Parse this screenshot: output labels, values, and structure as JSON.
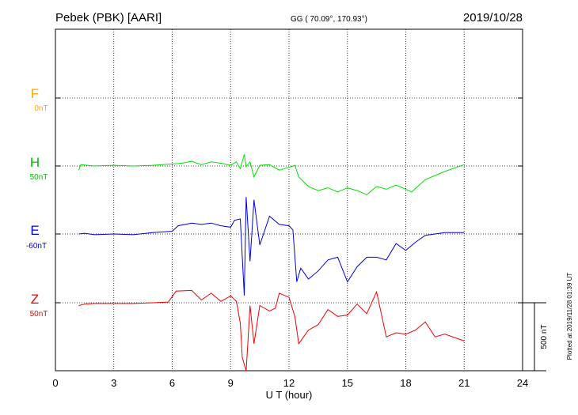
{
  "header": {
    "station": "Pebek (PBK)  [AARI]",
    "coords": "GG ( 70.09°, 170.93°)",
    "date": "2019/10/28"
  },
  "footer_note": "Plotted at 2019/11/28 01:39 UT",
  "colors": {
    "F": "#ffa500",
    "H": "#00e000",
    "E": "#0000dd",
    "Z": "#ee0000",
    "grid": "#000000"
  },
  "chart_data": {
    "type": "line",
    "xlabel": "U T (hour)",
    "xlim": [
      0,
      24
    ],
    "x_ticks": [
      "0",
      "3",
      "6",
      "9",
      "12",
      "15",
      "18",
      "21",
      "24"
    ],
    "scale_bar": "500 nT",
    "grid": true,
    "series": [
      {
        "name": "F",
        "offset": "0nT",
        "values": []
      },
      {
        "name": "H",
        "offset": "50nT",
        "x": [
          1.2,
          1.3,
          2,
          3,
          4,
          5,
          6,
          6.5,
          7,
          7.5,
          8,
          8.5,
          9,
          9.3,
          9.5,
          9.7,
          9.8,
          10,
          10.2,
          10.5,
          11,
          11.5,
          12,
          12.3,
          12.5,
          13,
          13.5,
          14,
          14.5,
          15,
          15.5,
          16,
          16.5,
          17,
          17.5,
          18,
          18.3,
          19,
          20,
          21
        ],
        "values": [
          -30,
          10,
          0,
          5,
          0,
          5,
          15,
          20,
          35,
          10,
          30,
          20,
          5,
          30,
          -20,
          85,
          -5,
          30,
          -80,
          5,
          10,
          -30,
          -10,
          5,
          -80,
          -150,
          -180,
          -160,
          -190,
          -160,
          -180,
          -210,
          -150,
          -170,
          -140,
          -170,
          -190,
          -100,
          -40,
          10
        ]
      },
      {
        "name": "E",
        "offset": "-60nT",
        "x": [
          1.2,
          1.5,
          2,
          3,
          4,
          5,
          6,
          6.3,
          7,
          7.5,
          8,
          8.5,
          9,
          9.2,
          9.5,
          9.7,
          9.8,
          10,
          10.2,
          10.5,
          11,
          11.5,
          12,
          12.2,
          12.4,
          12.6,
          13,
          13.5,
          14,
          14.5,
          15,
          15.5,
          16,
          16.5,
          17,
          17.5,
          18,
          18.5,
          19,
          20,
          21
        ],
        "values": [
          0,
          5,
          -5,
          0,
          -5,
          10,
          20,
          60,
          80,
          70,
          80,
          60,
          50,
          100,
          110,
          -450,
          270,
          -200,
          250,
          -80,
          130,
          70,
          60,
          30,
          -350,
          -250,
          -330,
          -270,
          -190,
          -170,
          -350,
          -240,
          -170,
          -170,
          -190,
          -70,
          -120,
          -60,
          -10,
          10,
          10
        ]
      },
      {
        "name": "Z",
        "offset": "50nT",
        "x": [
          1.2,
          1.5,
          2,
          3,
          4,
          5,
          5.8,
          6.2,
          7,
          7.5,
          8,
          8.5,
          9,
          9.3,
          9.5,
          9.6,
          9.8,
          10,
          10.2,
          10.5,
          11,
          11.3,
          11.5,
          12,
          12.3,
          12.5,
          13,
          13.5,
          14,
          14.5,
          15,
          15.5,
          16,
          16.5,
          17,
          17.5,
          18,
          18.5,
          19,
          19.5,
          20,
          21
        ],
        "values": [
          -20,
          -10,
          -5,
          -5,
          -5,
          0,
          5,
          85,
          90,
          20,
          70,
          10,
          50,
          10,
          -150,
          -400,
          -500,
          -20,
          -300,
          -20,
          -60,
          -40,
          70,
          40,
          -100,
          -300,
          -200,
          -160,
          -50,
          -100,
          -90,
          -10,
          -80,
          80,
          -250,
          -220,
          -230,
          -200,
          -140,
          -250,
          -230,
          -280
        ]
      }
    ]
  }
}
